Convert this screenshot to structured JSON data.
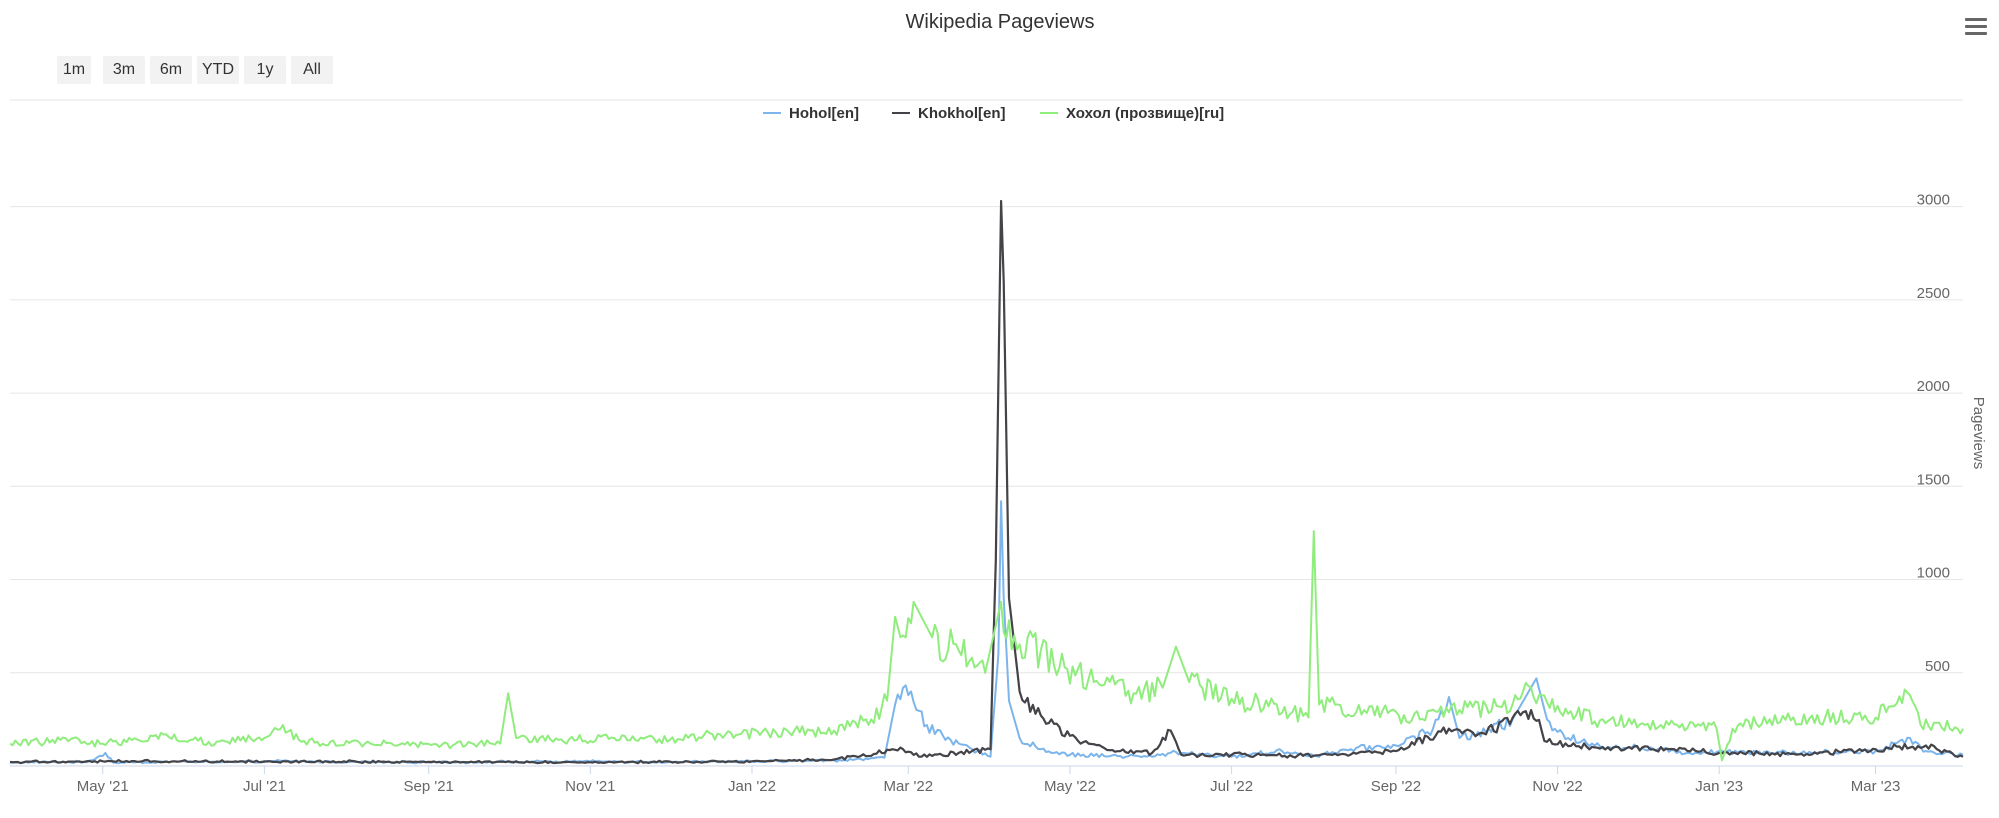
{
  "chart_data": {
    "type": "line",
    "title": "Wikipedia Pageviews",
    "ylabel": "Pageviews",
    "xlabel": "",
    "x_range": [
      "2021-03-27",
      "2023-04-03"
    ],
    "ylim": [
      0,
      3250
    ],
    "y_ticks": [
      500,
      1000,
      1500,
      2000,
      2500,
      3000
    ],
    "x_ticks": [
      {
        "date": "2021-05-01",
        "label": "May '21"
      },
      {
        "date": "2021-07-01",
        "label": "Jul '21"
      },
      {
        "date": "2021-09-01",
        "label": "Sep '21"
      },
      {
        "date": "2021-11-01",
        "label": "Nov '21"
      },
      {
        "date": "2022-01-01",
        "label": "Jan '22"
      },
      {
        "date": "2022-03-01",
        "label": "Mar '22"
      },
      {
        "date": "2022-05-01",
        "label": "May '22"
      },
      {
        "date": "2022-07-01",
        "label": "Jul '22"
      },
      {
        "date": "2022-09-01",
        "label": "Sep '22"
      },
      {
        "date": "2022-11-01",
        "label": "Nov '22"
      },
      {
        "date": "2023-01-01",
        "label": "Jan '23"
      },
      {
        "date": "2023-03-01",
        "label": "Mar '23"
      }
    ],
    "grid": true,
    "legend_position": "top-center",
    "range_buttons": [
      "1m",
      "3m",
      "6m",
      "YTD",
      "1y",
      "All"
    ],
    "series": [
      {
        "name": "Hohol[en]",
        "color": "#7cb5ec",
        "points": [
          [
            "2021-03-27",
            18
          ],
          [
            "2021-04-10",
            22
          ],
          [
            "2021-04-25",
            20
          ],
          [
            "2021-05-02",
            70
          ],
          [
            "2021-05-05",
            18
          ],
          [
            "2021-06-01",
            24
          ],
          [
            "2021-06-20",
            20
          ],
          [
            "2021-07-05",
            26
          ],
          [
            "2021-08-01",
            22
          ],
          [
            "2021-09-01",
            20
          ],
          [
            "2021-10-01",
            22
          ],
          [
            "2021-11-01",
            24
          ],
          [
            "2021-12-01",
            22
          ],
          [
            "2022-01-01",
            24
          ],
          [
            "2022-02-01",
            30
          ],
          [
            "2022-02-20",
            45
          ],
          [
            "2022-02-24",
            330
          ],
          [
            "2022-02-27",
            420
          ],
          [
            "2022-03-02",
            400
          ],
          [
            "2022-03-08",
            220
          ],
          [
            "2022-03-15",
            140
          ],
          [
            "2022-03-25",
            90
          ],
          [
            "2022-04-01",
            50
          ],
          [
            "2022-04-04",
            600
          ],
          [
            "2022-04-05",
            1420
          ],
          [
            "2022-04-06",
            900
          ],
          [
            "2022-04-08",
            350
          ],
          [
            "2022-04-12",
            150
          ],
          [
            "2022-04-20",
            90
          ],
          [
            "2022-05-01",
            60
          ],
          [
            "2022-06-01",
            50
          ],
          [
            "2022-06-10",
            75
          ],
          [
            "2022-07-01",
            50
          ],
          [
            "2022-07-20",
            80
          ],
          [
            "2022-08-01",
            55
          ],
          [
            "2022-08-15",
            90
          ],
          [
            "2022-09-01",
            110
          ],
          [
            "2022-09-15",
            200
          ],
          [
            "2022-09-21",
            370
          ],
          [
            "2022-09-25",
            150
          ],
          [
            "2022-10-05",
            180
          ],
          [
            "2022-10-15",
            250
          ],
          [
            "2022-10-24",
            470
          ],
          [
            "2022-10-28",
            250
          ],
          [
            "2022-11-05",
            150
          ],
          [
            "2022-11-15",
            110
          ],
          [
            "2022-12-01",
            100
          ],
          [
            "2022-12-20",
            70
          ],
          [
            "2023-01-01",
            80
          ],
          [
            "2023-02-01",
            70
          ],
          [
            "2023-03-01",
            80
          ],
          [
            "2023-03-14",
            150
          ],
          [
            "2023-03-20",
            80
          ],
          [
            "2023-04-03",
            60
          ]
        ]
      },
      {
        "name": "Khokhol[en]",
        "color": "#434348",
        "points": [
          [
            "2021-03-27",
            22
          ],
          [
            "2021-05-01",
            25
          ],
          [
            "2021-07-01",
            25
          ],
          [
            "2021-09-01",
            22
          ],
          [
            "2021-11-01",
            20
          ],
          [
            "2022-01-01",
            25
          ],
          [
            "2022-02-01",
            35
          ],
          [
            "2022-02-27",
            90
          ],
          [
            "2022-03-05",
            50
          ],
          [
            "2022-03-20",
            70
          ],
          [
            "2022-04-01",
            90
          ],
          [
            "2022-04-03",
            1100
          ],
          [
            "2022-04-05",
            3030
          ],
          [
            "2022-04-06",
            2600
          ],
          [
            "2022-04-08",
            900
          ],
          [
            "2022-04-12",
            400
          ],
          [
            "2022-04-18",
            280
          ],
          [
            "2022-04-23",
            230
          ],
          [
            "2022-05-05",
            120
          ],
          [
            "2022-05-20",
            80
          ],
          [
            "2022-06-01",
            70
          ],
          [
            "2022-06-08",
            190
          ],
          [
            "2022-06-12",
            60
          ],
          [
            "2022-07-01",
            60
          ],
          [
            "2022-08-01",
            55
          ],
          [
            "2022-09-01",
            80
          ],
          [
            "2022-09-21",
            200
          ],
          [
            "2022-10-01",
            160
          ],
          [
            "2022-10-22",
            300
          ],
          [
            "2022-10-28",
            130
          ],
          [
            "2022-11-15",
            100
          ],
          [
            "2022-12-15",
            90
          ],
          [
            "2023-01-01",
            70
          ],
          [
            "2023-02-01",
            65
          ],
          [
            "2023-03-01",
            90
          ],
          [
            "2023-03-20",
            110
          ],
          [
            "2023-04-03",
            50
          ]
        ]
      },
      {
        "name": "Хохол (прозвище)[ru]",
        "color": "#90ed7d",
        "points": [
          [
            "2021-03-27",
            120
          ],
          [
            "2021-04-15",
            140
          ],
          [
            "2021-05-01",
            120
          ],
          [
            "2021-05-20",
            160
          ],
          [
            "2021-06-10",
            130
          ],
          [
            "2021-07-01",
            150
          ],
          [
            "2021-07-08",
            220
          ],
          [
            "2021-07-15",
            130
          ],
          [
            "2021-08-10",
            120
          ],
          [
            "2021-09-10",
            110
          ],
          [
            "2021-09-28",
            120
          ],
          [
            "2021-10-01",
            390
          ],
          [
            "2021-10-04",
            150
          ],
          [
            "2021-10-20",
            140
          ],
          [
            "2021-11-10",
            150
          ],
          [
            "2021-12-01",
            140
          ],
          [
            "2021-12-20",
            170
          ],
          [
            "2022-01-10",
            180
          ],
          [
            "2022-02-01",
            190
          ],
          [
            "2022-02-15",
            250
          ],
          [
            "2022-02-21",
            350
          ],
          [
            "2022-02-24",
            800
          ],
          [
            "2022-02-27",
            700
          ],
          [
            "2022-03-03",
            880
          ],
          [
            "2022-03-10",
            690
          ],
          [
            "2022-03-20",
            620
          ],
          [
            "2022-03-30",
            500
          ],
          [
            "2022-04-05",
            880
          ],
          [
            "2022-04-10",
            700
          ],
          [
            "2022-04-20",
            620
          ],
          [
            "2022-04-30",
            520
          ],
          [
            "2022-05-10",
            450
          ],
          [
            "2022-05-25",
            390
          ],
          [
            "2022-06-05",
            420
          ],
          [
            "2022-06-10",
            640
          ],
          [
            "2022-06-15",
            450
          ],
          [
            "2022-07-01",
            360
          ],
          [
            "2022-07-15",
            320
          ],
          [
            "2022-07-30",
            260
          ],
          [
            "2022-08-01",
            1260
          ],
          [
            "2022-08-03",
            330
          ],
          [
            "2022-08-20",
            300
          ],
          [
            "2022-09-10",
            250
          ],
          [
            "2022-09-25",
            300
          ],
          [
            "2022-10-15",
            330
          ],
          [
            "2022-10-22",
            420
          ],
          [
            "2022-11-05",
            280
          ],
          [
            "2022-11-20",
            240
          ],
          [
            "2022-12-10",
            220
          ],
          [
            "2022-12-31",
            200
          ],
          [
            "2023-01-02",
            30
          ],
          [
            "2023-01-06",
            200
          ],
          [
            "2023-01-20",
            250
          ],
          [
            "2023-02-10",
            260
          ],
          [
            "2023-03-01",
            260
          ],
          [
            "2023-03-14",
            380
          ],
          [
            "2023-03-18",
            220
          ],
          [
            "2023-04-03",
            200
          ]
        ]
      }
    ]
  }
}
